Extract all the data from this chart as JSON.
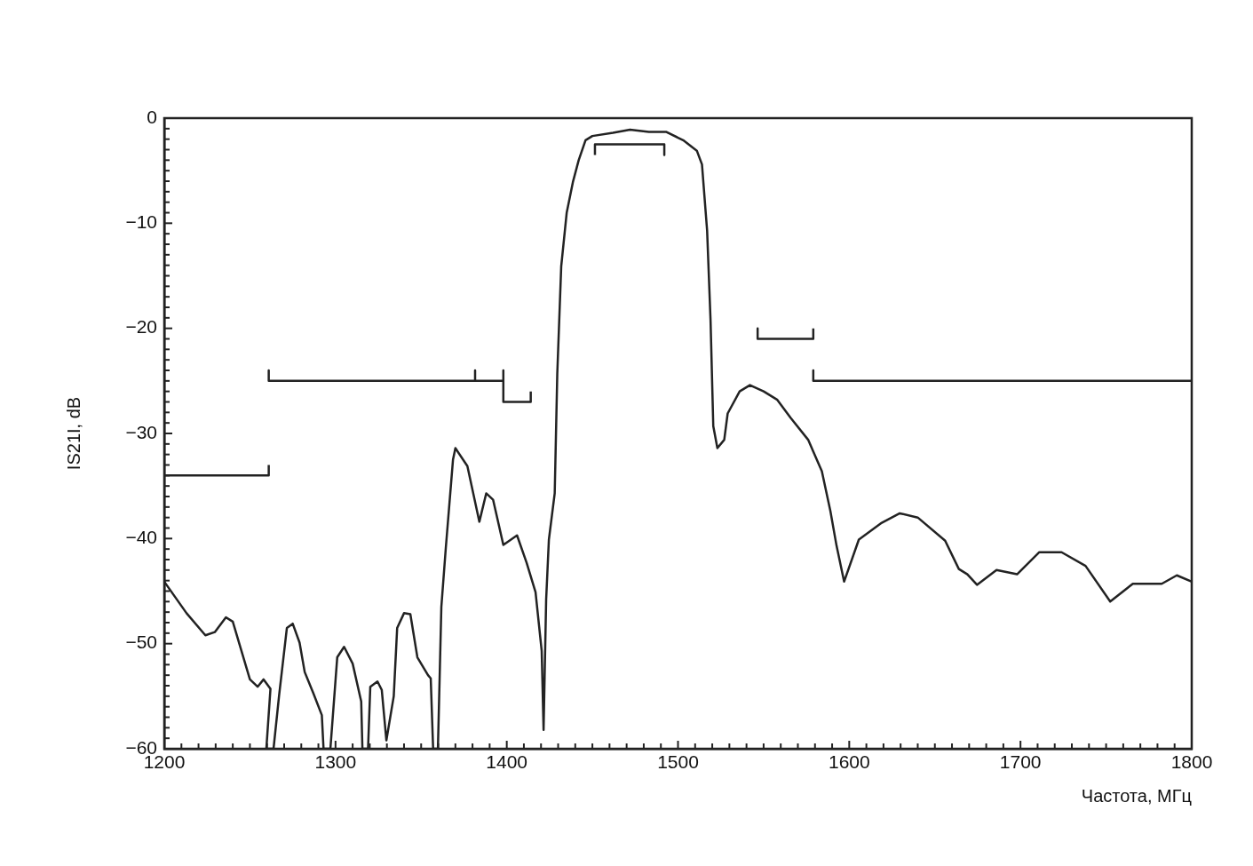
{
  "chart_data": {
    "type": "line",
    "xlabel": "Частота, МГц",
    "ylabel": "IS21I, dB",
    "xlim": [
      1200,
      1800
    ],
    "ylim": [
      -60,
      0
    ],
    "legend": false,
    "marker": "none",
    "xticks": [
      1200,
      {
        "value": 1210,
        "label": null
      },
      {
        "value": 1220,
        "label": null
      },
      {
        "value": 1230,
        "label": null
      },
      {
        "value": 1240,
        "label": null
      },
      {
        "value": 1250,
        "label": null
      },
      {
        "value": 1260,
        "label": null
      },
      {
        "value": 1270,
        "label": null
      },
      {
        "value": 1280,
        "label": null
      },
      {
        "value": 1290,
        "label": null
      },
      1300,
      {
        "value": 1310,
        "label": null
      },
      {
        "value": 1320,
        "label": null
      },
      {
        "value": 1330,
        "label": null
      },
      {
        "value": 1340,
        "label": null
      },
      {
        "value": 1350,
        "label": null
      },
      {
        "value": 1360,
        "label": null
      },
      {
        "value": 1370,
        "label": null
      },
      {
        "value": 1380,
        "label": null
      },
      {
        "value": 1390,
        "label": null
      },
      1400,
      {
        "value": 1410,
        "label": null
      },
      {
        "value": 1420,
        "label": null
      },
      {
        "value": 1430,
        "label": null
      },
      {
        "value": 1440,
        "label": null
      },
      {
        "value": 1450,
        "label": null
      },
      {
        "value": 1460,
        "label": null
      },
      {
        "value": 1470,
        "label": null
      },
      {
        "value": 1480,
        "label": null
      },
      {
        "value": 1490,
        "label": null
      },
      1500,
      {
        "value": 1510,
        "label": null
      },
      {
        "value": 1520,
        "label": null
      },
      {
        "value": 1530,
        "label": null
      },
      {
        "value": 1540,
        "label": null
      },
      {
        "value": 1550,
        "label": null
      },
      {
        "value": 1560,
        "label": null
      },
      {
        "value": 1570,
        "label": null
      },
      {
        "value": 1580,
        "label": null
      },
      {
        "value": 1590,
        "label": null
      },
      1600,
      {
        "value": 1610,
        "label": null
      },
      {
        "value": 1620,
        "label": null
      },
      {
        "value": 1630,
        "label": null
      },
      {
        "value": 1640,
        "label": null
      },
      {
        "value": 1650,
        "label": null
      },
      {
        "value": 1660,
        "label": null
      },
      {
        "value": 1670,
        "label": null
      },
      {
        "value": 1680,
        "label": null
      },
      {
        "value": 1690,
        "label": null
      },
      1700,
      {
        "value": 1710,
        "label": null
      },
      {
        "value": 1720,
        "label": null
      },
      {
        "value": 1730,
        "label": null
      },
      {
        "value": 1740,
        "label": null
      },
      {
        "value": 1750,
        "label": null
      },
      {
        "value": 1760,
        "label": null
      },
      {
        "value": 1770,
        "label": null
      },
      {
        "value": 1780,
        "label": null
      },
      {
        "value": 1790,
        "label": null
      },
      1800
    ],
    "yticks": [
      {
        "value": -60,
        "label": "−60"
      },
      {
        "value": -59,
        "label": null
      },
      {
        "value": -58,
        "label": null
      },
      {
        "value": -57,
        "label": null
      },
      {
        "value": -56,
        "label": null
      },
      {
        "value": -55,
        "label": null
      },
      {
        "value": -54,
        "label": null
      },
      {
        "value": -53,
        "label": null
      },
      {
        "value": -52,
        "label": null
      },
      {
        "value": -51,
        "label": null
      },
      {
        "value": -50,
        "label": "−50"
      },
      {
        "value": -49,
        "label": null
      },
      {
        "value": -48,
        "label": null
      },
      {
        "value": -47,
        "label": null
      },
      {
        "value": -46,
        "label": null
      },
      {
        "value": -45,
        "label": null
      },
      {
        "value": -44,
        "label": null
      },
      {
        "value": -43,
        "label": null
      },
      {
        "value": -42,
        "label": null
      },
      {
        "value": -41,
        "label": null
      },
      {
        "value": -40,
        "label": "−40"
      },
      {
        "value": -39,
        "label": null
      },
      {
        "value": -38,
        "label": null
      },
      {
        "value": -37,
        "label": null
      },
      {
        "value": -36,
        "label": null
      },
      {
        "value": -35,
        "label": null
      },
      {
        "value": -34,
        "label": null
      },
      {
        "value": -33,
        "label": null
      },
      {
        "value": -32,
        "label": null
      },
      {
        "value": -31,
        "label": null
      },
      {
        "value": -30,
        "label": "−30"
      },
      {
        "value": -29,
        "label": null
      },
      {
        "value": -28,
        "label": null
      },
      {
        "value": -27,
        "label": null
      },
      {
        "value": -26,
        "label": null
      },
      {
        "value": -25,
        "label": null
      },
      {
        "value": -24,
        "label": null
      },
      {
        "value": -23,
        "label": null
      },
      {
        "value": -22,
        "label": null
      },
      {
        "value": -21,
        "label": null
      },
      {
        "value": -20,
        "label": "−20"
      },
      {
        "value": -19,
        "label": null
      },
      {
        "value": -18,
        "label": null
      },
      {
        "value": -17,
        "label": null
      },
      {
        "value": -16,
        "label": null
      },
      {
        "value": -15,
        "label": null
      },
      {
        "value": -14,
        "label": null
      },
      {
        "value": -13,
        "label": null
      },
      {
        "value": -12,
        "label": null
      },
      {
        "value": -11,
        "label": null
      },
      {
        "value": -10,
        "label": "−10"
      },
      {
        "value": -9,
        "label": null
      },
      {
        "value": -8,
        "label": null
      },
      {
        "value": -7,
        "label": null
      },
      {
        "value": -6,
        "label": null
      },
      {
        "value": -5,
        "label": null
      },
      {
        "value": -4,
        "label": null
      },
      {
        "value": -3,
        "label": null
      },
      {
        "value": -2,
        "label": null
      },
      {
        "value": -1,
        "label": null
      },
      0
    ],
    "series": [
      {
        "color": "#222222",
        "x": [
          1200,
          1213,
          1224,
          1229.5,
          1236,
          1240,
          1250,
          1254.5,
          1258,
          1262,
          1259.6,
          1263.8,
          1267,
          1271.6,
          1275,
          1279,
          1282,
          1287,
          1292,
          1293,
          1297,
          1301,
          1305,
          1310,
          1315,
          1315.7,
          1319,
          1320.3,
          1324.5,
          1327,
          1329.7,
          1334,
          1336,
          1340,
          1343.7,
          1347.8,
          1354,
          1355.6,
          1357,
          1359.8,
          1361.8,
          1364.4,
          1368.6,
          1370,
          1377,
          1384,
          1388,
          1392,
          1398,
          1406,
          1411.6,
          1416.8,
          1420.4,
          1421.5,
          1423,
          1424.6,
          1428,
          1429.5,
          1431.8,
          1435,
          1438.6,
          1442,
          1446,
          1450,
          1462,
          1472,
          1483,
          1493,
          1503,
          1511,
          1514,
          1517,
          1519,
          1520.6,
          1523,
          1527,
          1529,
          1536,
          1542,
          1550,
          1558,
          1565.7,
          1576,
          1584,
          1589,
          1592.6,
          1597,
          1605.6,
          1619,
          1629.5,
          1640,
          1656,
          1664,
          1669,
          1674.6,
          1686,
          1698,
          1711,
          1724,
          1738,
          1752.4,
          1765.6,
          1782.5,
          1791.3,
          1800
        ],
        "values": [
          -44.1,
          -47.1,
          -49.2,
          -48.9,
          -47.5,
          -47.9,
          -53.4,
          -54.1,
          -53.4,
          -54.3,
          -60,
          -60,
          -55,
          -48.5,
          -48.1,
          -49.9,
          -52.7,
          -54.7,
          -56.8,
          -60,
          -60,
          -51.3,
          -50.3,
          -51.9,
          -55.5,
          -60,
          -60,
          -54.1,
          -53.6,
          -54.4,
          -59.2,
          -55,
          -48.5,
          -47.1,
          -47.2,
          -51.3,
          -53,
          -53.3,
          -60,
          -60,
          -46.5,
          -40.9,
          -32.5,
          -31.4,
          -33.1,
          -38.4,
          -35.7,
          -36.3,
          -40.6,
          -39.7,
          -42.3,
          -45.1,
          -50.7,
          -58.2,
          -45.8,
          -40.1,
          -35.7,
          -24.3,
          -14.1,
          -9,
          -6.1,
          -4,
          -2.1,
          -1.7,
          -1.4,
          -1.1,
          -1.3,
          -1.3,
          -2.1,
          -3.1,
          -4.4,
          -10.7,
          -19.2,
          -29.3,
          -31.4,
          -30.6,
          -28.1,
          -26,
          -25.4,
          -26,
          -26.8,
          -28.5,
          -30.6,
          -33.6,
          -37.4,
          -40.7,
          -44.1,
          -40.1,
          -38.5,
          -37.6,
          -38,
          -40.2,
          -42.9,
          -43.4,
          -44.4,
          -43,
          -43.4,
          -41.3,
          -41.3,
          -42.6,
          -46,
          -44.3,
          -44.3,
          -43.5,
          -44.1
        ]
      },
      {
        "color": "#222222",
        "x": [
          1200,
          1261,
          1261
        ],
        "values": [
          -34,
          -34,
          -33
        ]
      },
      {
        "color": "#222222",
        "x": [
          1261,
          1261,
          1381.5,
          1381.5,
          1381.5,
          1398,
          1398,
          1398,
          1414,
          1414
        ],
        "values": [
          -24,
          -25,
          -25,
          -24,
          -25,
          -25,
          -24,
          -27,
          -27,
          -26
        ]
      },
      {
        "color": "#222222",
        "x": [
          1451.5,
          1451.5,
          1492,
          1492
        ],
        "values": [
          -3.5,
          -2.5,
          -2.5,
          -3.5
        ]
      },
      {
        "color": "#222222",
        "x": [
          1546.5,
          1546.5,
          1579,
          1579
        ],
        "values": [
          -20,
          -21,
          -21,
          -20
        ]
      },
      {
        "color": "#222222",
        "x": [
          1579,
          1579,
          1800
        ],
        "values": [
          -24,
          -25,
          -25
        ]
      }
    ]
  }
}
